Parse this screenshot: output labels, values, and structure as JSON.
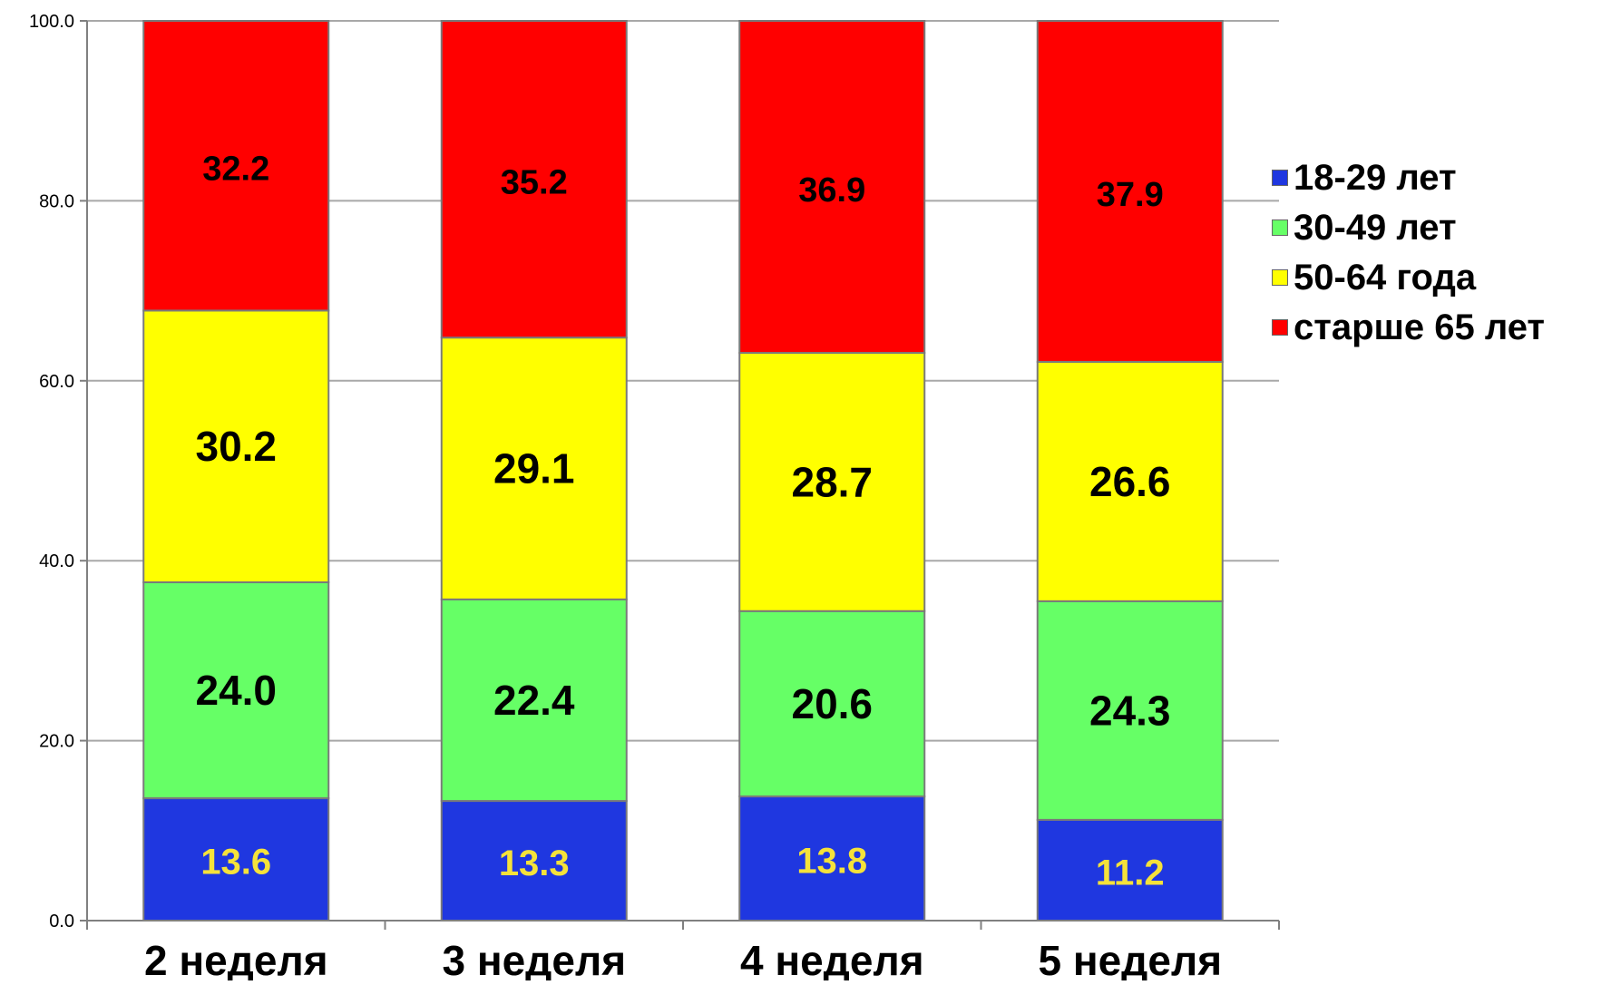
{
  "chart_data": {
    "type": "bar",
    "stacked": true,
    "categories": [
      "2 неделя",
      "3 неделя",
      "4 неделя",
      "5 неделя"
    ],
    "series": [
      {
        "name": "18-29 лет",
        "color": "#1f37e0",
        "label_color": "#f5e23a",
        "values": [
          13.6,
          13.3,
          13.8,
          11.2
        ]
      },
      {
        "name": "30-49 лет",
        "color": "#66ff66",
        "label_color": "#000000",
        "values": [
          24.0,
          22.4,
          20.6,
          24.3
        ]
      },
      {
        "name": "50-64 года",
        "color": "#ffff00",
        "label_color": "#000000",
        "values": [
          30.2,
          29.1,
          28.7,
          26.6
        ]
      },
      {
        "name": "старше 65 лет",
        "color": "#ff0000",
        "label_color": "#000000",
        "values": [
          32.2,
          35.2,
          36.9,
          37.9
        ]
      }
    ],
    "data_labels": [
      [
        "13.6",
        "13.3",
        "13.8",
        "11.2"
      ],
      [
        "24.0",
        "22.4",
        "20.6",
        "24.3"
      ],
      [
        "30.2",
        "29.1",
        "28.7",
        "26.6"
      ],
      [
        "32.2",
        "35.2",
        "36.9",
        "37.9"
      ]
    ],
    "ylim": [
      0,
      100
    ],
    "yticks": [
      "0.0",
      "20.0",
      "40.0",
      "60.0",
      "80.0",
      "100.0"
    ],
    "grid": true,
    "legend_position": "right",
    "title": "",
    "xlabel": "",
    "ylabel": ""
  }
}
